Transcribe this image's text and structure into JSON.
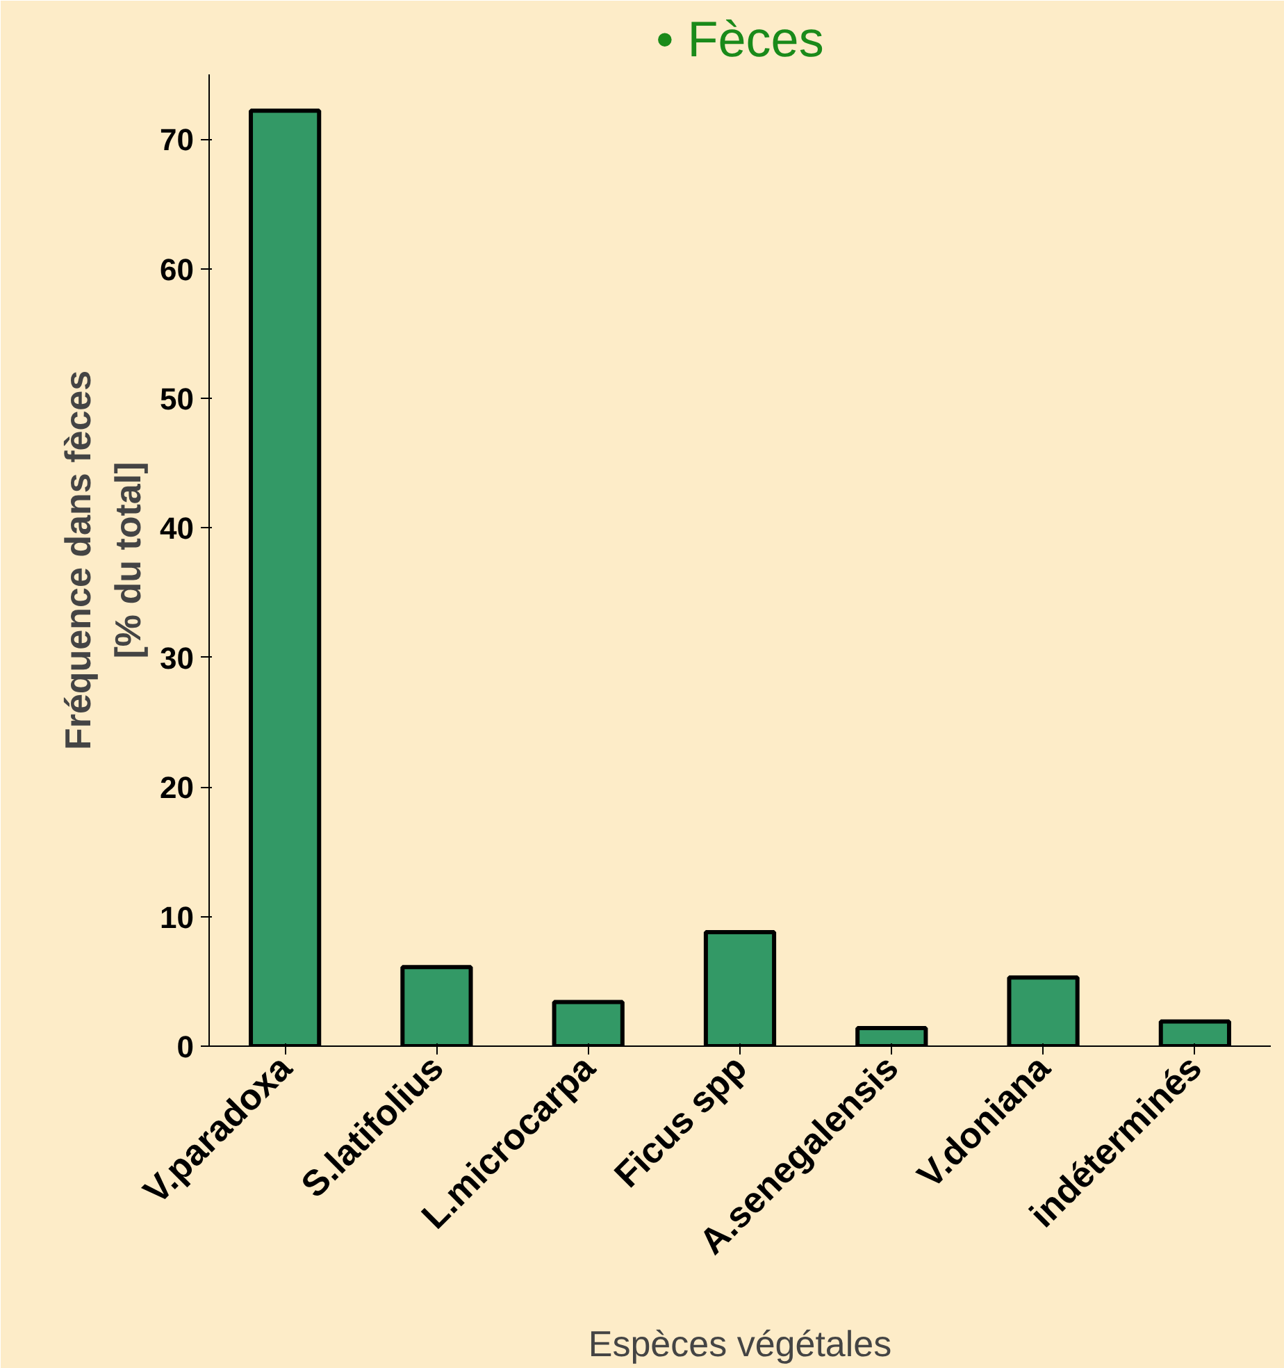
{
  "chart_data": {
    "type": "bar",
    "title": "• Fèces",
    "xlabel": "Espèces végétales",
    "ylabel": "Fréquence dans fèces\n[% du total]",
    "categories": [
      "V.paradoxa",
      "S.latifolius",
      "L.microcarpa",
      "Ficus spp",
      "A.senegalensis",
      "V.doniana",
      "indéterminés"
    ],
    "values": [
      72.2,
      6.1,
      3.4,
      8.8,
      1.4,
      5.3,
      1.9
    ],
    "color": "#339966",
    "ylim": [
      0,
      75
    ],
    "yticks": [
      0,
      10,
      20,
      30,
      40,
      50,
      60,
      70
    ],
    "grid": false
  }
}
